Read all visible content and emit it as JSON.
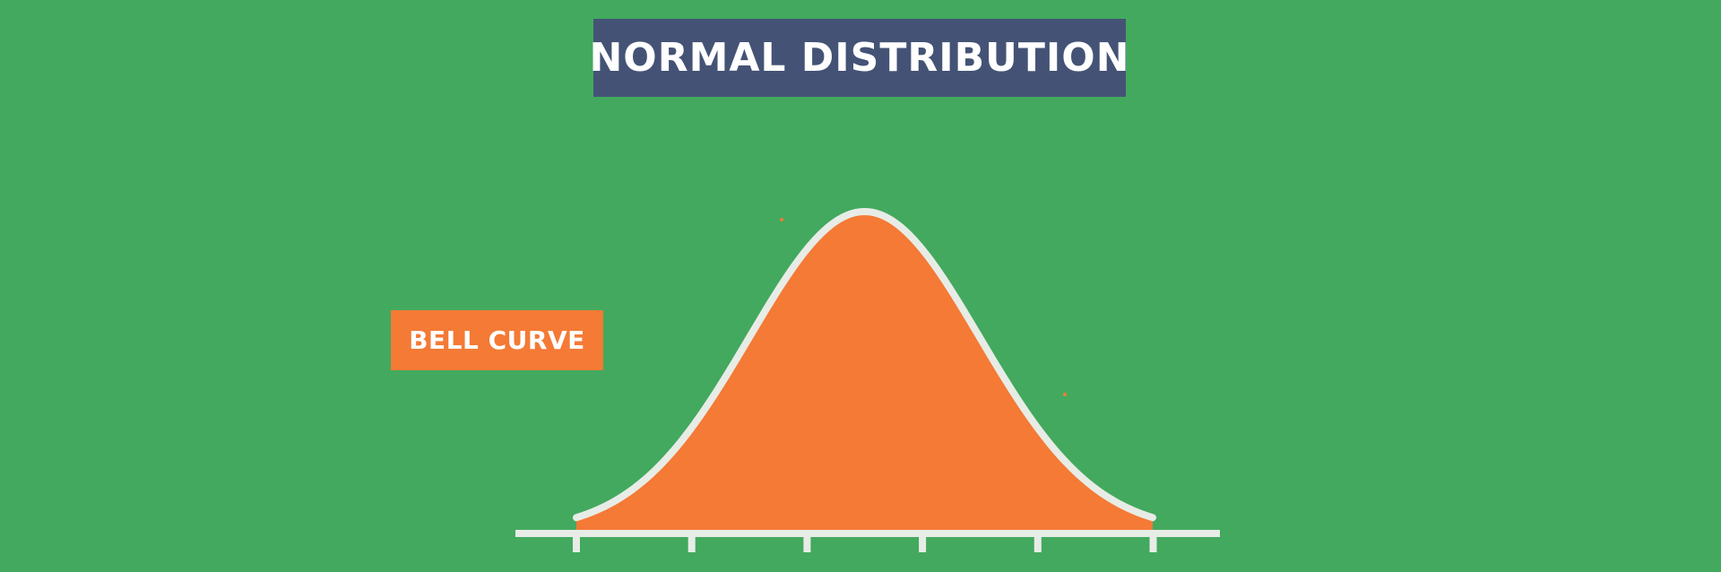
{
  "title": "NORMAL DISTRIBUTION",
  "curve_label": "BELL CURVE",
  "colors": {
    "background": "#43a95f",
    "title_box": "#445375",
    "curve_fill": "#f47a35",
    "curve_stroke": "#e8ece6",
    "axis": "#e8ece6",
    "label_box": "#f47a35",
    "text": "#ffffff"
  },
  "curve": {
    "type": "normal",
    "mean": 0,
    "std_dev": 1,
    "x_range": [
      -2.5,
      2.5
    ],
    "tick_values": [
      -2.5,
      -1.5,
      -0.5,
      0.5,
      1.5,
      2.5
    ]
  }
}
